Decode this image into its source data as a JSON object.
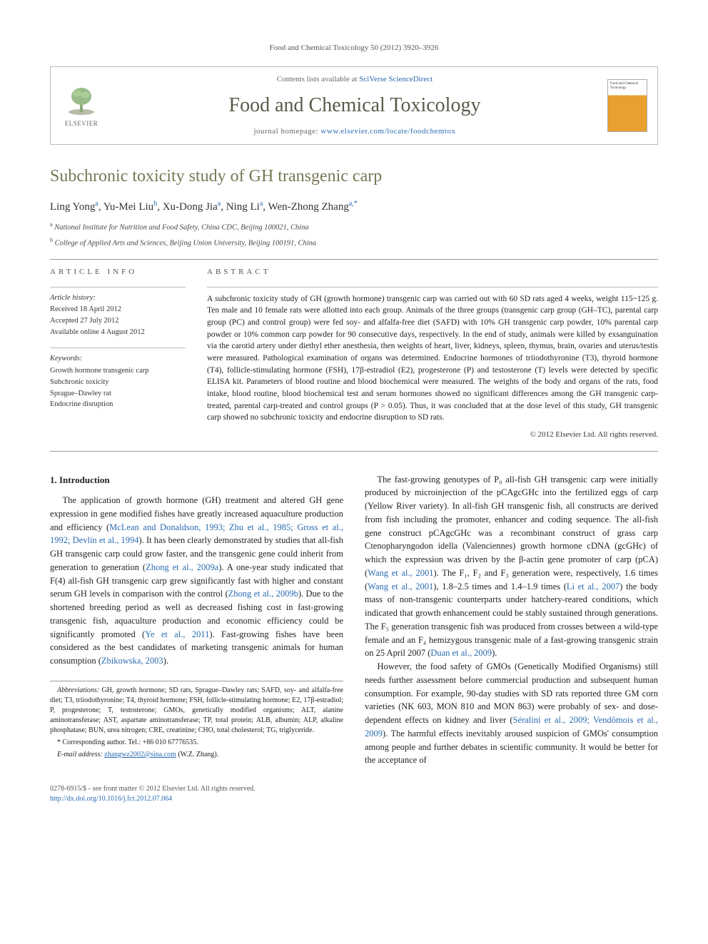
{
  "citation": "Food and Chemical Toxicology 50 (2012) 3920–3926",
  "header": {
    "contents_prefix": "Contents lists available at ",
    "contents_link": "SciVerse ScienceDirect",
    "journal_title": "Food and Chemical Toxicology",
    "homepage_prefix": "journal homepage: ",
    "homepage_url": "www.elsevier.com/locate/foodchemtox",
    "publisher": "ELSEVIER",
    "cover_label": "Food and Chemical Toxicology"
  },
  "article": {
    "title": "Subchronic toxicity study of GH transgenic carp",
    "authors_html": "Ling Yong|a|, Yu-Mei Liu|b|, Xu-Dong Jia|a|, Ning Li|a|, Wen-Zhong Zhang|a,*",
    "affiliations": [
      {
        "sup": "a",
        "text": "National Institute for Nutrition and Food Safety, China CDC, Beijing 100021, China"
      },
      {
        "sup": "b",
        "text": "College of Applied Arts and Sciences, Beijing Union University, Beijing 100191, China"
      }
    ]
  },
  "info": {
    "head": "ARTICLE INFO",
    "history_label": "Article history:",
    "history": [
      "Received 18 April 2012",
      "Accepted 27 July 2012",
      "Available online 4 August 2012"
    ],
    "keywords_label": "Keywords:",
    "keywords": [
      "Growth hormone transgenic carp",
      "Subchronic toxicity",
      "Sprague–Dawley rat",
      "Endocrine disruption"
    ]
  },
  "abstract": {
    "head": "ABSTRACT",
    "text": "A subchronic toxicity study of GH (growth hormone) transgenic carp was carried out with 60 SD rats aged 4 weeks, weight 115~125 g. Ten male and 10 female rats were allotted into each group. Animals of the three groups (transgenic carp group (GH–TC), parental carp group (PC) and control group) were fed soy- and alfalfa-free diet (SAFD) with 10% GH transgenic carp powder, 10% parental carp powder or 10% common carp powder for 90 consecutive days, respectively. In the end of study, animals were killed by exsanguination via the carotid artery under diethyl ether anesthesia, then weights of heart, liver, kidneys, spleen, thymus, brain, ovaries and uterus/testis were measured. Pathological examination of organs was determined. Endocrine hormones of triiodothyronine (T3), thyroid hormone (T4), follicle-stimulating hormone (FSH), 17β-estradiol (E2), progesterone (P) and testosterone (T) levels were detected by specific ELISA kit. Parameters of blood routine and blood biochemical were measured. The weights of the body and organs of the rats, food intake, blood routine, blood biochemical test and serum hormones showed no significant differences among the GH transgenic carp-treated, parental carp-treated and control groups (P > 0.05). Thus, it was concluded that at the dose level of this study, GH transgenic carp showed no subchronic toxicity and endocrine disruption to SD rats.",
    "copyright": "© 2012 Elsevier Ltd. All rights reserved."
  },
  "body": {
    "section_head": "1. Introduction",
    "left_paragraphs": [
      "The application of growth hormone (GH) treatment and altered GH gene expression in gene modified fishes have greatly increased aquaculture production and efficiency (|McLean and Donaldson, 1993; Zhu et al., 1985; Gross et al., 1992; Devlin et al., 1994|). It has been clearly demonstrated by studies that all-fish GH transgenic carp could grow faster, and the transgenic gene could inherit from generation to generation (|Zhong et al., 2009a|). A one-year study indicated that F(4) all-fish GH transgenic carp grew significantly fast with higher and constant serum GH levels in comparison with the control (|Zhong et al., 2009b|). Due to the shortened breeding period as well as decreased fishing cost in fast-growing transgenic fish, aquaculture production and economic efficiency could be significantly promoted (|Ye et al., 2011|). Fast-growing fishes have been considered as the best candidates of marketing transgenic animals for human consumption (|Zbikowska, 2003|)."
    ],
    "right_paragraphs": [
      "The fast-growing genotypes of P₀ all-fish GH transgenic carp were initially produced by microinjection of the pCAgcGHc into the fertilized eggs of carp (Yellow River variety). In all-fish GH transgenic fish, all constructs are derived from fish including the promoter, enhancer and coding sequence. The all-fish gene construct pCAgcGHc was a recombinant construct of grass carp Ctenopharyngodon idella (Valenciennes) growth hormone cDNA (gcGHc) of which the expression was driven by the β-actin gene promoter of carp (pCA) (|Wang et al., 2001|). The F₁, F₂ and F₃ generation were, respectively, 1.6 times (|Wang et al., 2001|), 1.8–2.5 times and 1.4–1.9 times (|Li et al., 2007|) the body mass of non-transgenic counterparts under hatchery-reared conditions, which indicated that growth enhancement could be stably sustained through generations. The F₅ generation transgenic fish was produced from crosses between a wild-type female and an F₄ hemizygous transgenic male of a fast-growing transgenic strain on 25 April 2007 (|Duan et al., 2009|).",
      "However, the food safety of GMOs (Genetically Modified Organisms) still needs further assessment before commercial production and subsequent human consumption. For example, 90-day studies with SD rats reported three GM corn varieties (NK 603, MON 810 and MON 863) were probably of sex- and dose-dependent effects on kidney and liver (|Séralini et al., 2009; Vendômois et al., 2009|). The harmful effects inevitably aroused suspicion of GMOs' consumption among people and further debates in scientific community. It would be better for the acceptance of"
    ]
  },
  "footnotes": {
    "abbrev_label": "Abbreviations:",
    "abbrev_text": " GH, growth hormone; SD rats, Sprague–Dawley rats; SAFD, soy- and alfalfa-free diet; T3, triiodothyronine; T4, thyroid hormone; FSH, follicle-stimulating hormone; E2, 17β-estradiol; P, progesterone; T, testosterone; GMOs, genetically modified organisms; ALT, alanine aminotransferase; AST, aspartate aminotransferase; TP, total protein; ALB, albumin; ALP, alkaline phosphatase; BUN, urea nitrogen; CRE, creatinine; CHO, total cholesterol; TG, triglyceride.",
    "corr_label": "* Corresponding author. Tel.: +86 010 67776535.",
    "email_label": "E-mail address:",
    "email": "zhangwz2002@sina.com",
    "email_suffix": " (W.Z. Zhang)."
  },
  "footer": {
    "left_line1": "0278-6915/$ - see front matter © 2012 Elsevier Ltd. All rights reserved.",
    "left_line2": "http://dx.doi.org/10.1016/j.fct.2012.07.064"
  },
  "colors": {
    "link": "#2a6bb0",
    "heading": "#777755",
    "rule": "#999999"
  }
}
